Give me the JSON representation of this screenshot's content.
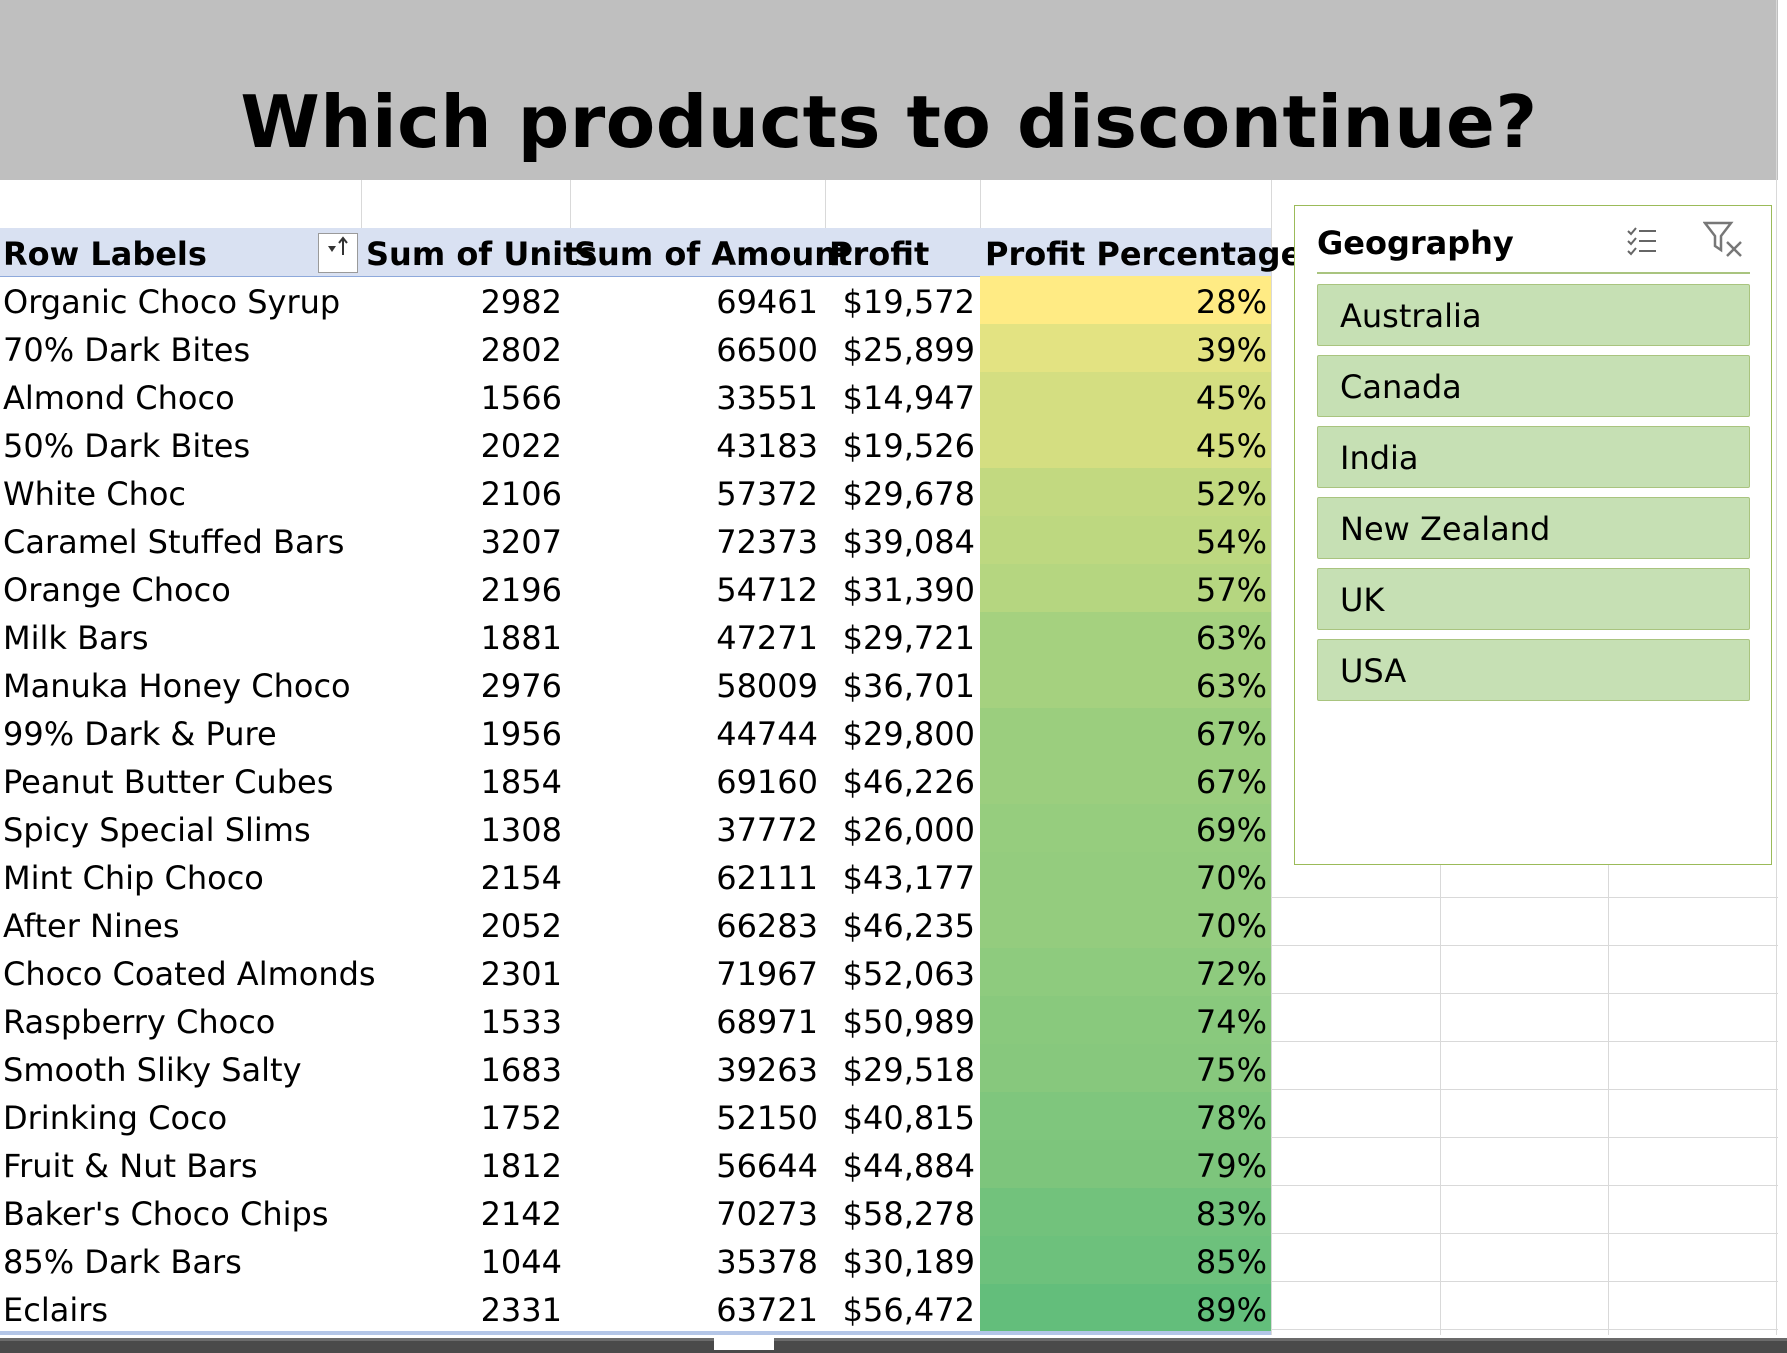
{
  "title": "Which products to discontinue?",
  "pivot": {
    "headers": {
      "row_labels": "Row Labels",
      "units": "Sum of Units",
      "amount": "Sum of Amount",
      "profit": "Profit",
      "pct": "Profit  Percentage"
    },
    "rows": [
      {
        "label": "Organic Choco Syrup",
        "units": "2982",
        "amount": "69461",
        "profit": "$19,572",
        "pct": "28%",
        "value": 0.28
      },
      {
        "label": "70% Dark Bites",
        "units": "2802",
        "amount": "66500",
        "profit": "$25,899",
        "pct": "39%",
        "value": 0.39
      },
      {
        "label": "Almond Choco",
        "units": "1566",
        "amount": "33551",
        "profit": "$14,947",
        "pct": "45%",
        "value": 0.45
      },
      {
        "label": "50% Dark Bites",
        "units": "2022",
        "amount": "43183",
        "profit": "$19,526",
        "pct": "45%",
        "value": 0.45
      },
      {
        "label": "White Choc",
        "units": "2106",
        "amount": "57372",
        "profit": "$29,678",
        "pct": "52%",
        "value": 0.52
      },
      {
        "label": "Caramel Stuffed Bars",
        "units": "3207",
        "amount": "72373",
        "profit": "$39,084",
        "pct": "54%",
        "value": 0.54
      },
      {
        "label": "Orange Choco",
        "units": "2196",
        "amount": "54712",
        "profit": "$31,390",
        "pct": "57%",
        "value": 0.57
      },
      {
        "label": "Milk Bars",
        "units": "1881",
        "amount": "47271",
        "profit": "$29,721",
        "pct": "63%",
        "value": 0.63
      },
      {
        "label": "Manuka Honey Choco",
        "units": "2976",
        "amount": "58009",
        "profit": "$36,701",
        "pct": "63%",
        "value": 0.63
      },
      {
        "label": "99% Dark & Pure",
        "units": "1956",
        "amount": "44744",
        "profit": "$29,800",
        "pct": "67%",
        "value": 0.67
      },
      {
        "label": "Peanut Butter Cubes",
        "units": "1854",
        "amount": "69160",
        "profit": "$46,226",
        "pct": "67%",
        "value": 0.67
      },
      {
        "label": "Spicy Special Slims",
        "units": "1308",
        "amount": "37772",
        "profit": "$26,000",
        "pct": "69%",
        "value": 0.69
      },
      {
        "label": "Mint Chip Choco",
        "units": "2154",
        "amount": "62111",
        "profit": "$43,177",
        "pct": "70%",
        "value": 0.7
      },
      {
        "label": "After Nines",
        "units": "2052",
        "amount": "66283",
        "profit": "$46,235",
        "pct": "70%",
        "value": 0.7
      },
      {
        "label": "Choco Coated Almonds",
        "units": "2301",
        "amount": "71967",
        "profit": "$52,063",
        "pct": "72%",
        "value": 0.72
      },
      {
        "label": "Raspberry Choco",
        "units": "1533",
        "amount": "68971",
        "profit": "$50,989",
        "pct": "74%",
        "value": 0.74
      },
      {
        "label": "Smooth Sliky Salty",
        "units": "1683",
        "amount": "39263",
        "profit": "$29,518",
        "pct": "75%",
        "value": 0.75
      },
      {
        "label": "Drinking Coco",
        "units": "1752",
        "amount": "52150",
        "profit": "$40,815",
        "pct": "78%",
        "value": 0.78
      },
      {
        "label": "Fruit & Nut Bars",
        "units": "1812",
        "amount": "56644",
        "profit": "$44,884",
        "pct": "79%",
        "value": 0.79
      },
      {
        "label": "Baker's Choco Chips",
        "units": "2142",
        "amount": "70273",
        "profit": "$58,278",
        "pct": "83%",
        "value": 0.83
      },
      {
        "label": "85% Dark Bars",
        "units": "1044",
        "amount": "35378",
        "profit": "$30,189",
        "pct": "85%",
        "value": 0.85
      },
      {
        "label": "Eclairs",
        "units": "2331",
        "amount": "63721",
        "profit": "$56,472",
        "pct": "89%",
        "value": 0.89
      }
    ]
  },
  "color_scale": {
    "low": "#ffeb84",
    "high": "#63be7b"
  },
  "slicer": {
    "title": "Geography",
    "items": [
      "Australia",
      "Canada",
      "India",
      "New Zealand",
      "UK",
      "USA"
    ]
  },
  "icons": {
    "sort": "sort-icon",
    "multiselect": "multi-select-icon",
    "clear_filter": "clear-filter-icon"
  }
}
